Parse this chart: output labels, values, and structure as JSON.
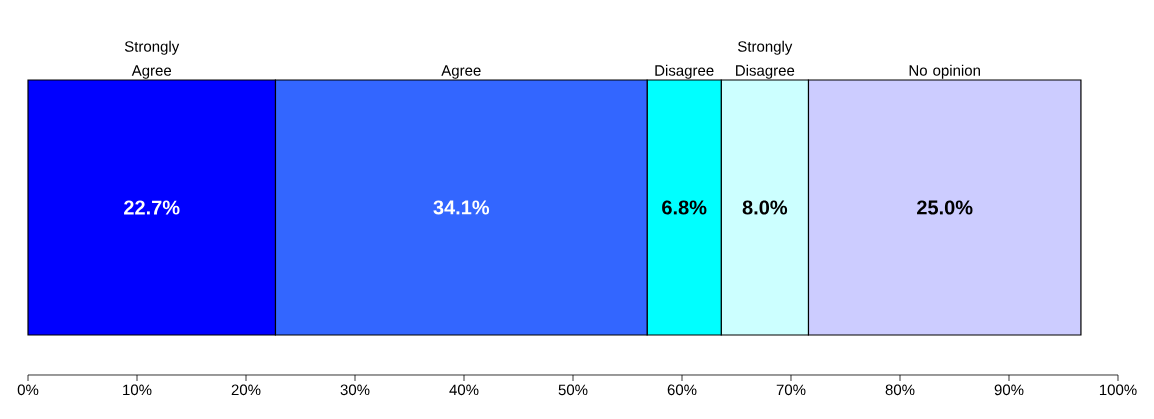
{
  "chart_data": {
    "type": "bar",
    "orientation": "horizontal",
    "stacked": true,
    "categories": [
      null
    ],
    "series": [
      {
        "name": "Strongly Agree",
        "color": "#0000ff",
        "values": [
          22.7
        ],
        "value_labels": [
          "22.7%"
        ]
      },
      {
        "name": "Agree",
        "color": "#3366ff",
        "values": [
          34.1
        ],
        "value_labels": [
          "34.1%"
        ]
      },
      {
        "name": "Disagree",
        "color": "#00ffff",
        "values": [
          6.8
        ],
        "value_labels": [
          "6.8%"
        ]
      },
      {
        "name": "Strongly Disagree",
        "color": "#ccffff",
        "values": [
          8.0
        ],
        "value_labels": [
          "8.0%"
        ]
      },
      {
        "name": "No opinion",
        "color": "#ccccff",
        "values": [
          25.0
        ],
        "value_labels": [
          "25.0%"
        ]
      }
    ],
    "xlim": [
      0,
      100
    ],
    "xticks": [
      {
        "value": 0,
        "label": "0%"
      },
      {
        "value": 10,
        "label": "10%"
      },
      {
        "value": 20,
        "label": "20%"
      },
      {
        "value": 30,
        "label": "30%"
      },
      {
        "value": 40,
        "label": "40%"
      },
      {
        "value": 50,
        "label": "50%"
      },
      {
        "value": 60,
        "label": "60%"
      },
      {
        "value": 70,
        "label": "70%"
      },
      {
        "value": 80,
        "label": "80%"
      },
      {
        "value": 90,
        "label": "90%"
      },
      {
        "value": 100,
        "label": "100%"
      }
    ]
  }
}
